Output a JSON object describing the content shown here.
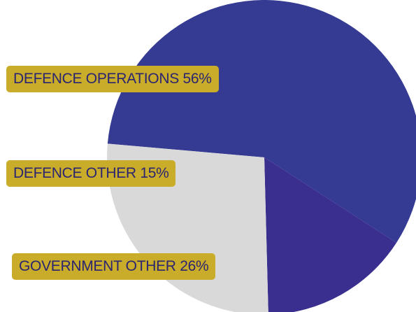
{
  "chart_data": {
    "type": "pie",
    "slices": [
      {
        "label": "DEFENCE OPERATIONS",
        "value": 56,
        "value_text": "56%",
        "color": "#353a93"
      },
      {
        "label": "DEFENCE OTHER",
        "value": 15,
        "value_text": "15%",
        "color": "#3a2f8f"
      },
      {
        "label": "GOVERNMENT OTHER",
        "value": 26,
        "value_text": "26%",
        "color": "#d9d9d9"
      }
    ],
    "label_color": "#c9ad2a",
    "label_text_color": "#2b2470"
  }
}
